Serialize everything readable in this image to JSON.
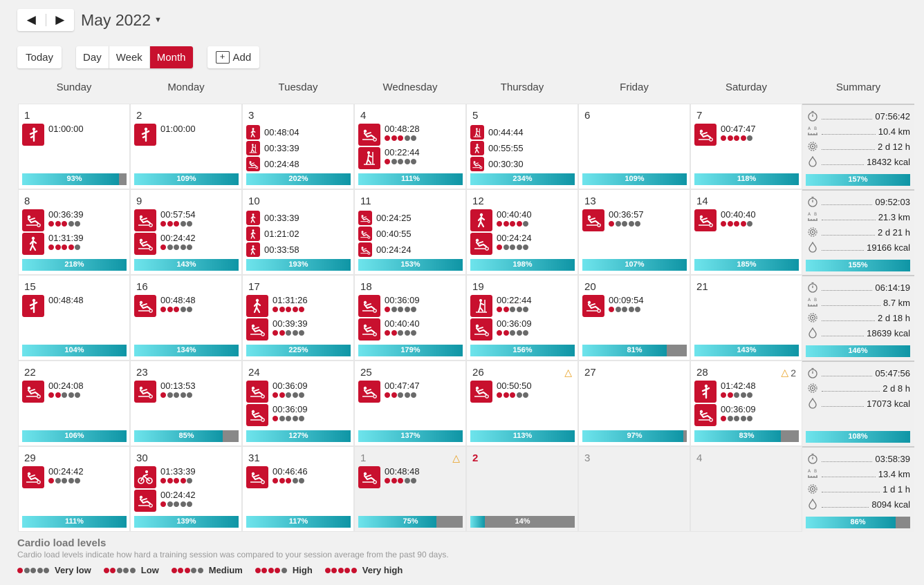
{
  "nav": {
    "prev_label": "◀",
    "next_label": "▶",
    "month_label": "May 2022"
  },
  "toolbar": {
    "today_label": "Today",
    "views": [
      "Day",
      "Week",
      "Month"
    ],
    "active_view": "Month",
    "add_label": "Add"
  },
  "weekdays": [
    "Sunday",
    "Monday",
    "Tuesday",
    "Wednesday",
    "Thursday",
    "Friday",
    "Saturday",
    "Summary"
  ],
  "colors": {
    "accent": "#c8102e",
    "bar_start": "#6ee4ec",
    "bar_end": "#0f95a5",
    "warning": "#e8a020"
  },
  "weeks": [
    {
      "days": [
        {
          "num": "1",
          "acts": [
            {
              "icon": "standing-stretch-icon",
              "time": "01:00:00"
            }
          ],
          "pct": 93,
          "pct_label": "93%"
        },
        {
          "num": "2",
          "acts": [
            {
              "icon": "standing-stretch-icon",
              "time": "01:00:00"
            }
          ],
          "pct": 109,
          "pct_label": "109%"
        },
        {
          "num": "3",
          "small": true,
          "acts": [
            {
              "icon": "walking-icon",
              "time": "00:48:04"
            },
            {
              "icon": "elliptical-icon",
              "time": "00:33:39"
            },
            {
              "icon": "rowing-icon",
              "time": "00:24:48"
            }
          ],
          "pct": 202,
          "pct_label": "202%"
        },
        {
          "num": "4",
          "acts": [
            {
              "icon": "rowing-icon",
              "time": "00:48:28",
              "load": 3
            },
            {
              "icon": "elliptical-icon",
              "time": "00:22:44",
              "load": 1
            }
          ],
          "pct": 111,
          "pct_label": "111%"
        },
        {
          "num": "5",
          "small": true,
          "acts": [
            {
              "icon": "elliptical-icon",
              "time": "00:44:44"
            },
            {
              "icon": "walking-icon",
              "time": "00:55:55"
            },
            {
              "icon": "rowing-icon",
              "time": "00:30:30"
            }
          ],
          "pct": 234,
          "pct_label": "234%"
        },
        {
          "num": "6",
          "acts": [],
          "pct": 109,
          "pct_label": "109%"
        },
        {
          "num": "7",
          "acts": [
            {
              "icon": "rowing-icon",
              "time": "00:47:47",
              "load": 4
            }
          ],
          "pct": 118,
          "pct_label": "118%"
        }
      ],
      "summary": {
        "duration": "07:56:42",
        "distance": "10.4 km",
        "recovery": "2 d 12 h",
        "calories": "18432 kcal",
        "pct": 157,
        "pct_label": "157%"
      }
    },
    {
      "days": [
        {
          "num": "8",
          "acts": [
            {
              "icon": "rowing-icon",
              "time": "00:36:39",
              "load": 3
            },
            {
              "icon": "walking-icon",
              "time": "01:31:39",
              "load": 4
            }
          ],
          "pct": 218,
          "pct_label": "218%"
        },
        {
          "num": "9",
          "acts": [
            {
              "icon": "rowing-icon",
              "time": "00:57:54",
              "load": 3
            },
            {
              "icon": "rowing-icon",
              "time": "00:24:42",
              "load": 1
            }
          ],
          "pct": 143,
          "pct_label": "143%"
        },
        {
          "num": "10",
          "small": true,
          "acts": [
            {
              "icon": "walking-icon",
              "time": "00:33:39"
            },
            {
              "icon": "walking-icon",
              "time": "01:21:02"
            },
            {
              "icon": "walking-icon",
              "time": "00:33:58"
            }
          ],
          "pct": 193,
          "pct_label": "193%"
        },
        {
          "num": "11",
          "small": true,
          "acts": [
            {
              "icon": "rowing-icon",
              "time": "00:24:25"
            },
            {
              "icon": "rowing-icon",
              "time": "00:40:55"
            },
            {
              "icon": "rowing-icon",
              "time": "00:24:24"
            }
          ],
          "pct": 153,
          "pct_label": "153%"
        },
        {
          "num": "12",
          "acts": [
            {
              "icon": "walking-icon",
              "time": "00:40:40",
              "load": 4
            },
            {
              "icon": "rowing-icon",
              "time": "00:24:24",
              "load": 1
            }
          ],
          "pct": 198,
          "pct_label": "198%"
        },
        {
          "num": "13",
          "acts": [
            {
              "icon": "rowing-icon",
              "time": "00:36:57",
              "load": 1
            }
          ],
          "pct": 107,
          "pct_label": "107%"
        },
        {
          "num": "14",
          "acts": [
            {
              "icon": "rowing-icon",
              "time": "00:40:40",
              "load": 4
            }
          ],
          "pct": 185,
          "pct_label": "185%"
        }
      ],
      "summary": {
        "duration": "09:52:03",
        "distance": "21.3 km",
        "recovery": "2 d 21 h",
        "calories": "19166 kcal",
        "pct": 155,
        "pct_label": "155%"
      }
    },
    {
      "days": [
        {
          "num": "15",
          "acts": [
            {
              "icon": "standing-stretch-icon",
              "time": "00:48:48"
            }
          ],
          "pct": 104,
          "pct_label": "104%"
        },
        {
          "num": "16",
          "acts": [
            {
              "icon": "rowing-icon",
              "time": "00:48:48",
              "load": 3
            }
          ],
          "pct": 134,
          "pct_label": "134%"
        },
        {
          "num": "17",
          "acts": [
            {
              "icon": "walking-icon",
              "time": "01:31:26",
              "load": 5
            },
            {
              "icon": "rowing-icon",
              "time": "00:39:39",
              "load": 2
            }
          ],
          "pct": 225,
          "pct_label": "225%"
        },
        {
          "num": "18",
          "acts": [
            {
              "icon": "rowing-icon",
              "time": "00:36:09",
              "load": 1
            },
            {
              "icon": "rowing-icon",
              "time": "00:40:40",
              "load": 2
            }
          ],
          "pct": 179,
          "pct_label": "179%"
        },
        {
          "num": "19",
          "acts": [
            {
              "icon": "elliptical-icon",
              "time": "00:22:44",
              "load": 2
            },
            {
              "icon": "rowing-icon",
              "time": "00:36:09",
              "load": 2
            }
          ],
          "pct": 156,
          "pct_label": "156%"
        },
        {
          "num": "20",
          "acts": [
            {
              "icon": "rowing-icon",
              "time": "00:09:54",
              "load": 1
            }
          ],
          "pct": 81,
          "pct_label": "81%"
        },
        {
          "num": "21",
          "acts": [],
          "pct": 143,
          "pct_label": "143%"
        }
      ],
      "summary": {
        "duration": "06:14:19",
        "distance": "8.7 km",
        "recovery": "2 d 18 h",
        "calories": "18639 kcal",
        "pct": 146,
        "pct_label": "146%"
      }
    },
    {
      "days": [
        {
          "num": "22",
          "acts": [
            {
              "icon": "rowing-icon",
              "time": "00:24:08",
              "load": 2
            }
          ],
          "pct": 106,
          "pct_label": "106%"
        },
        {
          "num": "23",
          "acts": [
            {
              "icon": "rowing-icon",
              "time": "00:13:53",
              "load": 1
            }
          ],
          "pct": 85,
          "pct_label": "85%"
        },
        {
          "num": "24",
          "acts": [
            {
              "icon": "rowing-icon",
              "time": "00:36:09",
              "load": 2
            },
            {
              "icon": "rowing-icon",
              "time": "00:36:09",
              "load": 1
            }
          ],
          "pct": 127,
          "pct_label": "127%"
        },
        {
          "num": "25",
          "acts": [
            {
              "icon": "rowing-icon",
              "time": "00:47:47",
              "load": 2
            }
          ],
          "pct": 137,
          "pct_label": "137%"
        },
        {
          "num": "26",
          "warn": "△",
          "acts": [
            {
              "icon": "rowing-icon",
              "time": "00:50:50",
              "load": 3
            }
          ],
          "pct": 113,
          "pct_label": "113%"
        },
        {
          "num": "27",
          "acts": [],
          "pct": 97,
          "pct_label": "97%"
        },
        {
          "num": "28",
          "warn": "△",
          "warn_count": "2",
          "acts": [
            {
              "icon": "standing-stretch-icon",
              "time": "01:42:48",
              "load": 2
            },
            {
              "icon": "rowing-icon",
              "time": "00:36:09",
              "load": 1
            }
          ],
          "pct": 83,
          "pct_label": "83%"
        }
      ],
      "summary": {
        "duration": "05:47:56",
        "recovery": "2 d 8 h",
        "calories": "17073 kcal",
        "pct": 108,
        "pct_label": "108%"
      }
    },
    {
      "days": [
        {
          "num": "29",
          "acts": [
            {
              "icon": "rowing-icon",
              "time": "00:24:42",
              "load": 1
            }
          ],
          "pct": 111,
          "pct_label": "111%"
        },
        {
          "num": "30",
          "acts": [
            {
              "icon": "cycling-icon",
              "time": "01:33:39",
              "load": 4
            },
            {
              "icon": "rowing-icon",
              "time": "00:24:42",
              "load": 1
            }
          ],
          "pct": 139,
          "pct_label": "139%"
        },
        {
          "num": "31",
          "acts": [
            {
              "icon": "rowing-icon",
              "time": "00:46:46",
              "load": 3
            }
          ],
          "pct": 117,
          "pct_label": "117%"
        },
        {
          "num": "1",
          "other": true,
          "warn": "△",
          "acts": [
            {
              "icon": "rowing-icon",
              "time": "00:48:48",
              "load": 3
            }
          ],
          "pct": 75,
          "pct_label": "75%"
        },
        {
          "num": "2",
          "other": true,
          "today": true,
          "acts": [],
          "pct": 14,
          "pct_label": "14%"
        },
        {
          "num": "3",
          "other": true,
          "acts": []
        },
        {
          "num": "4",
          "other": true,
          "acts": []
        }
      ],
      "summary": {
        "duration": "03:58:39",
        "distance": "13.4 km",
        "recovery": "1 d 1 h",
        "calories": "8094 kcal",
        "pct": 86,
        "pct_label": "86%"
      }
    }
  ],
  "legend": {
    "title": "Cardio load levels",
    "description": "Cardio load levels indicate how hard a training session was compared to your session average from the past 90 days.",
    "levels": [
      {
        "label": "Very low",
        "load": 1
      },
      {
        "label": "Low",
        "load": 2
      },
      {
        "label": "Medium",
        "load": 3
      },
      {
        "label": "High",
        "load": 4
      },
      {
        "label": "Very high",
        "load": 5
      }
    ]
  }
}
